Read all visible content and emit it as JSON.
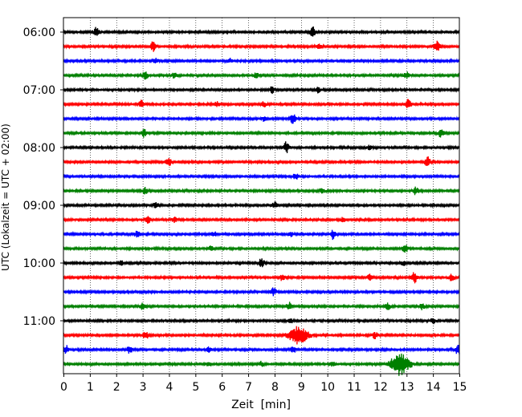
{
  "chart_data": {
    "type": "line",
    "title": "",
    "xlabel": "Zeit  [min]",
    "ylabel": "UTC (Lokalzeit = UTC + 02:00)",
    "xlim": [
      0,
      15
    ],
    "xticks": [
      0,
      1,
      2,
      3,
      4,
      5,
      6,
      7,
      8,
      9,
      10,
      11,
      12,
      13,
      14,
      15
    ],
    "grid": "vertical dotted",
    "trace_interval_minutes": 15,
    "start_time": "06:00",
    "hour_labels": [
      "06:00",
      "07:00",
      "08:00",
      "09:00",
      "10:00",
      "11:00"
    ],
    "colors": [
      "#000000",
      "#ff0000",
      "#0000ff",
      "#008000"
    ],
    "traces": [
      {
        "start": "06:00",
        "events": [
          {
            "t": 1.25,
            "a": 6
          },
          {
            "t": 9.45,
            "a": 7
          }
        ]
      },
      {
        "start": "06:15",
        "events": [
          {
            "t": 3.4,
            "a": 6
          },
          {
            "t": 9.7,
            "a": 3
          },
          {
            "t": 14.15,
            "a": 7
          }
        ]
      },
      {
        "start": "06:30",
        "events": [
          {
            "t": 3.5,
            "a": 3
          },
          {
            "t": 6.3,
            "a": 3
          }
        ]
      },
      {
        "start": "06:45",
        "events": [
          {
            "t": 3.1,
            "a": 5
          },
          {
            "t": 4.2,
            "a": 3
          },
          {
            "t": 7.3,
            "a": 3
          },
          {
            "t": 13.0,
            "a": 4
          }
        ]
      },
      {
        "start": "07:00",
        "events": [
          {
            "t": 7.9,
            "a": 4
          },
          {
            "t": 9.65,
            "a": 3
          }
        ]
      },
      {
        "start": "07:15",
        "events": [
          {
            "t": 2.95,
            "a": 5
          },
          {
            "t": 5.8,
            "a": 3
          },
          {
            "t": 7.6,
            "a": 3
          },
          {
            "t": 13.05,
            "a": 6
          }
        ]
      },
      {
        "start": "07:30",
        "events": [
          {
            "t": 7.6,
            "a": 3
          },
          {
            "t": 8.7,
            "a": 6
          }
        ]
      },
      {
        "start": "07:45",
        "events": [
          {
            "t": 3.05,
            "a": 5
          },
          {
            "t": 14.3,
            "a": 5
          }
        ]
      },
      {
        "start": "08:00",
        "events": [
          {
            "t": 8.45,
            "a": 7
          },
          {
            "t": 11.6,
            "a": 3
          }
        ]
      },
      {
        "start": "08:15",
        "events": [
          {
            "t": 4.0,
            "a": 5
          },
          {
            "t": 13.8,
            "a": 6
          }
        ]
      },
      {
        "start": "08:30",
        "events": [
          {
            "t": 8.8,
            "a": 4
          }
        ]
      },
      {
        "start": "08:45",
        "events": [
          {
            "t": 3.1,
            "a": 4
          },
          {
            "t": 9.8,
            "a": 3
          },
          {
            "t": 13.35,
            "a": 5
          }
        ]
      },
      {
        "start": "09:00",
        "events": [
          {
            "t": 3.5,
            "a": 3
          },
          {
            "t": 8.0,
            "a": 4
          }
        ]
      },
      {
        "start": "09:15",
        "events": [
          {
            "t": 3.2,
            "a": 4
          },
          {
            "t": 4.2,
            "a": 3
          },
          {
            "t": 10.6,
            "a": 3
          }
        ]
      },
      {
        "start": "09:30",
        "events": [
          {
            "t": 2.8,
            "a": 4
          },
          {
            "t": 5.7,
            "a": 3
          },
          {
            "t": 8.6,
            "a": 3
          },
          {
            "t": 10.2,
            "a": 6
          }
        ]
      },
      {
        "start": "09:45",
        "events": [
          {
            "t": 5.6,
            "a": 3
          },
          {
            "t": 12.95,
            "a": 5
          }
        ]
      },
      {
        "start": "10:00",
        "events": [
          {
            "t": 2.2,
            "a": 3
          },
          {
            "t": 7.5,
            "a": 6
          },
          {
            "t": 12.9,
            "a": 3
          }
        ]
      },
      {
        "start": "10:15",
        "events": [
          {
            "t": 8.3,
            "a": 4
          },
          {
            "t": 11.6,
            "a": 4
          },
          {
            "t": 13.3,
            "a": 7
          },
          {
            "t": 14.7,
            "a": 5
          }
        ]
      },
      {
        "start": "10:30",
        "events": [
          {
            "t": 7.95,
            "a": 5
          }
        ]
      },
      {
        "start": "10:45",
        "events": [
          {
            "t": 3.0,
            "a": 4
          },
          {
            "t": 8.55,
            "a": 5
          },
          {
            "t": 12.3,
            "a": 4
          },
          {
            "t": 13.6,
            "a": 4
          }
        ]
      },
      {
        "start": "11:00",
        "events": [
          {
            "t": 8.6,
            "a": 3
          },
          {
            "t": 14.0,
            "a": 4
          }
        ]
      },
      {
        "start": "11:15",
        "events": [
          {
            "t": 3.1,
            "a": 6
          },
          {
            "t": 8.9,
            "a": 11
          },
          {
            "t": 11.8,
            "a": 4
          }
        ]
      },
      {
        "start": "11:30",
        "events": [
          {
            "t": 0.1,
            "a": 5
          },
          {
            "t": 2.5,
            "a": 5
          },
          {
            "t": 5.5,
            "a": 3
          },
          {
            "t": 8.7,
            "a": 4
          },
          {
            "t": 14.95,
            "a": 6
          }
        ]
      },
      {
        "start": "11:45",
        "events": [
          {
            "t": 5.5,
            "a": 3
          },
          {
            "t": 7.5,
            "a": 3
          },
          {
            "t": 10.2,
            "a": 3
          },
          {
            "t": 12.75,
            "a": 14
          }
        ]
      }
    ]
  }
}
